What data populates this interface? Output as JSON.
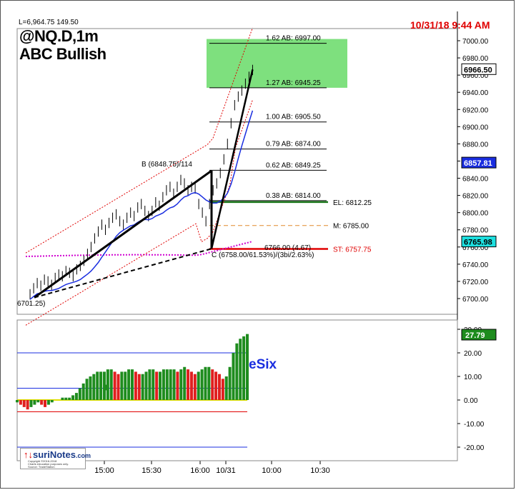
{
  "header": {
    "stats": "L=6,964.75  149.50",
    "symbol": "@NQ.D,1m",
    "pattern": "ABC Bullish",
    "timestamp": "10/31/18 9:44 AM"
  },
  "logo": {
    "brand": "suriNotes",
    "suffix": ".com",
    "line1": "Copyright ©2016-2018",
    "line2": "Charts education purposes only.",
    "line3": "Source: TradeStation"
  },
  "chart_data": [
    {
      "type": "line",
      "title": "@NQ.D,1m",
      "ylim": [
        6680,
        7015
      ],
      "y_ticks": [
        6700,
        6720,
        6740,
        6760,
        6780,
        6800,
        6820,
        6840,
        6860,
        6880,
        6900,
        6920,
        6940,
        6960,
        6980,
        7000
      ],
      "x_ticks": [
        "15:00",
        "15:30",
        "16:00",
        "10/31",
        "10:00",
        "10:30"
      ],
      "annotations": {
        "low_label": "6701.25)",
        "b_label": "B (6848.75)/114",
        "c_label": "C (6758.00/61.53%)/(3bi/2.63%)",
        "mid_label": "6766.00 (4.67)",
        "last_price": "6966.50",
        "blue_level": "6857.81",
        "cyan_level": "6765.98"
      },
      "fib_levels": [
        {
          "label": "1.62 AB: 6997.00",
          "value": 6997.0
        },
        {
          "label": "1.27 AB: 6945.25",
          "value": 6945.25
        },
        {
          "label": "1.00 AB: 6905.50",
          "value": 6905.5
        },
        {
          "label": "0.79 AB: 6874.00",
          "value": 6874.0
        },
        {
          "label": "0.62 AB: 6849.25",
          "value": 6849.25
        },
        {
          "label": "0.38 AB: 6814.00",
          "value": 6814.0
        }
      ],
      "trade_levels": [
        {
          "label": "EL: 6812.25",
          "value": 6812.25,
          "color": "#1f7a1f"
        },
        {
          "label": "M: 6785.00",
          "value": 6785.0,
          "color": "#e08a2c"
        },
        {
          "label": "ST: 6757.75",
          "value": 6757.75,
          "color": "#e00000"
        }
      ],
      "target_zone": {
        "from": 6945.25,
        "to": 7002,
        "color": "#7ee07e"
      },
      "abc_points": [
        {
          "name": "A",
          "t": 0.04,
          "value": 6701.25
        },
        {
          "name": "B",
          "t": 0.86,
          "value": 6848.75
        },
        {
          "name": "C",
          "t": 0.86,
          "value": 6758.0
        },
        {
          "name": "D",
          "t": 1.05,
          "value": 6966.5
        }
      ],
      "ohlc": [
        6705,
        6712,
        6718,
        6715,
        6722,
        6720,
        6716,
        6724,
        6728,
        6726,
        6732,
        6730,
        6726,
        6734,
        6738,
        6744,
        6752,
        6760,
        6770,
        6778,
        6786,
        6780,
        6788,
        6794,
        6798,
        6790,
        6786,
        6794,
        6800,
        6796,
        6806,
        6810,
        6802,
        6796,
        6802,
        6812,
        6808,
        6818,
        6826,
        6830,
        6822,
        6830,
        6838,
        6834,
        6826,
        6830,
        6828,
        6810,
        6800,
        6790,
        6810,
        6826,
        6834,
        6846,
        6862,
        6880,
        6904,
        6925,
        6935,
        6942,
        6950,
        6958,
        6966
      ],
      "mid_line_color": "#d000d0",
      "ma_color": "#1a2ee0"
    },
    {
      "type": "area",
      "title": "eSix",
      "ylim": [
        -21,
        32
      ],
      "y_ticks": [
        -20,
        -10,
        0,
        10,
        20,
        30
      ],
      "reference_lines": [
        20,
        5,
        -5,
        -20
      ],
      "last_value": "27.79",
      "values": [
        -1,
        -2,
        -3,
        -4,
        -3,
        -2,
        -1,
        -2,
        -3,
        -2,
        -1,
        0,
        0,
        1,
        1,
        1,
        2,
        3,
        5,
        7,
        9,
        10,
        11,
        12,
        12,
        12,
        13,
        13,
        12,
        11,
        12,
        12,
        13,
        13,
        12,
        11,
        11,
        12,
        13,
        13,
        12,
        12,
        13,
        13,
        13,
        13,
        12,
        13,
        14,
        13,
        12,
        11,
        12,
        13,
        14,
        14,
        13,
        12,
        11,
        9,
        10,
        14,
        20,
        24,
        26,
        27,
        28
      ],
      "colors": [
        "#1e8c1e",
        "#e01f1f"
      ]
    }
  ]
}
